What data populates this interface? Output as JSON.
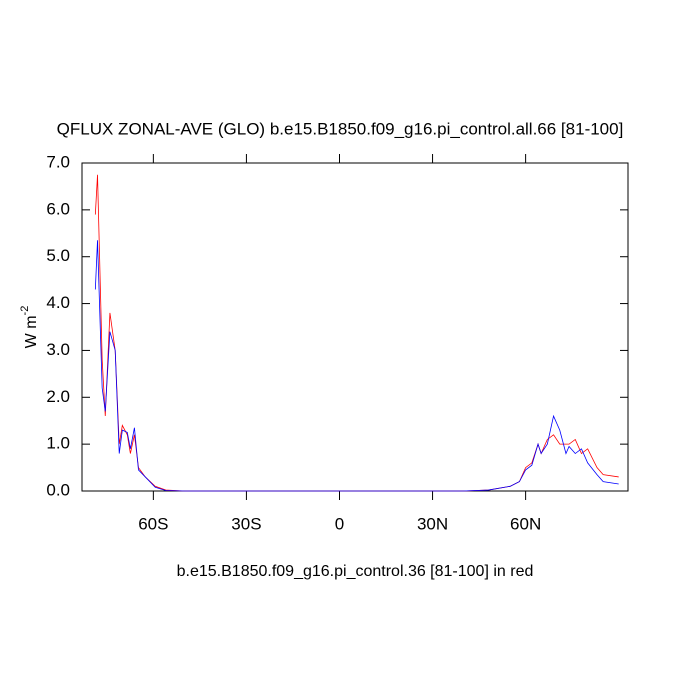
{
  "chart_data": {
    "type": "line",
    "title": "QFLUX ZONAL-AVE (GLO) b.e15.B1850.f09_g16.pi_control.all.66 [81-100]",
    "y_label": "W m",
    "y_label_superscript": "-2",
    "footer": "b.e15.B1850.f09_g16.pi_control.36 [81-100] in red",
    "x": [
      -78.7,
      -78,
      -76.5,
      -75.5,
      -74,
      -72.3,
      -71,
      -70,
      -68.4,
      -67.4,
      -66.1,
      -64.8,
      -62.6,
      -59.4,
      -56,
      -50,
      0,
      40,
      48,
      55,
      58,
      60,
      62,
      64,
      65,
      67,
      69,
      71,
      73,
      74,
      76,
      78,
      80,
      83,
      85,
      90
    ],
    "series": [
      {
        "color": "#ff0000",
        "values": [
          5.9,
          6.75,
          2.8,
          1.6,
          3.8,
          3.0,
          1.0,
          1.4,
          1.2,
          0.8,
          1.2,
          0.5,
          0.3,
          0.1,
          0.02,
          0,
          0,
          0,
          0.02,
          0.1,
          0.2,
          0.5,
          0.6,
          1.0,
          0.8,
          1.1,
          1.2,
          1.0,
          1.0,
          1.0,
          1.1,
          0.8,
          0.9,
          0.5,
          0.35,
          0.3
        ]
      },
      {
        "color": "#0000ff",
        "values": [
          4.3,
          5.35,
          2.2,
          1.7,
          3.4,
          3.0,
          0.8,
          1.3,
          1.25,
          0.9,
          1.35,
          0.45,
          0.3,
          0.08,
          0.01,
          0,
          0,
          0,
          0.02,
          0.1,
          0.2,
          0.45,
          0.55,
          1.0,
          0.8,
          1.0,
          1.6,
          1.3,
          0.8,
          0.95,
          0.8,
          0.9,
          0.6,
          0.35,
          0.2,
          0.15
        ]
      }
    ],
    "xlim": [
      -83,
      93
    ],
    "xticks": [
      {
        "value": -60,
        "label": "60S"
      },
      {
        "value": -30,
        "label": "30S"
      },
      0,
      {
        "value": 30,
        "label": "30N"
      },
      {
        "value": 60,
        "label": "60N"
      }
    ],
    "ylim": [
      0,
      7
    ],
    "yticks": [
      {
        "value": 0,
        "label": "0.0"
      },
      {
        "value": 1,
        "label": "1.0"
      },
      {
        "value": 2,
        "label": "2.0"
      },
      {
        "value": 3,
        "label": "3.0"
      },
      {
        "value": 4,
        "label": "4.0"
      },
      {
        "value": 5,
        "label": "5.0"
      },
      {
        "value": 6,
        "label": "6.0"
      },
      {
        "value": 7,
        "label": "7.0"
      }
    ]
  }
}
